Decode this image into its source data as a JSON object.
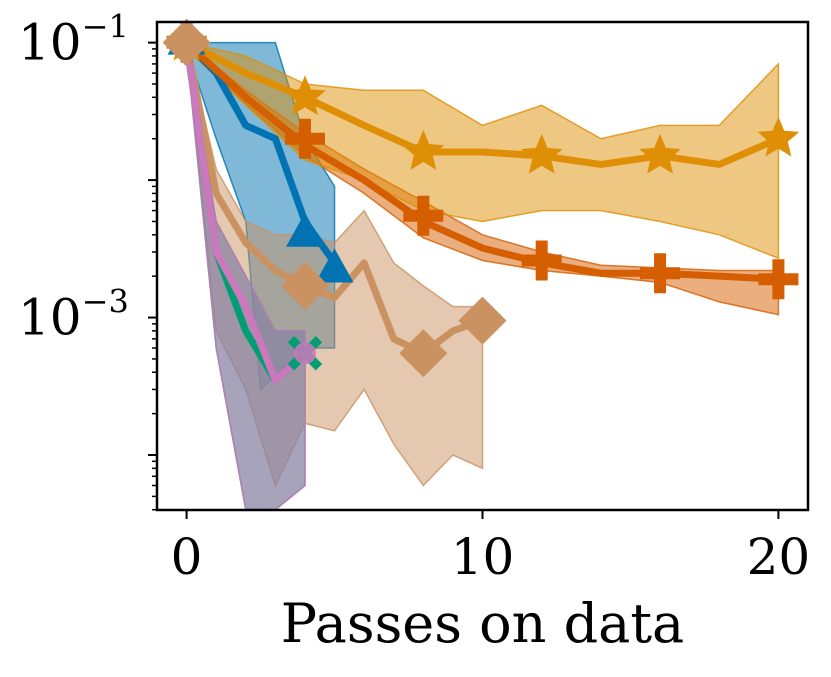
{
  "chart_data": {
    "type": "line",
    "title": "",
    "xlabel": "Passes on data",
    "ylabel": "",
    "xlim": [
      -1,
      21
    ],
    "ylim_log10": [
      -4.4,
      -0.85
    ],
    "y_scale": "log",
    "grid": false,
    "legend": "none",
    "x_ticks": [
      0,
      10,
      20
    ],
    "x_tick_labels": [
      "0",
      "10",
      "20"
    ],
    "y_ticks": [
      {
        "value": 0.1,
        "base": "10",
        "exponent": "−1"
      },
      {
        "value": 0.001,
        "base": "10",
        "exponent": "−3"
      }
    ],
    "series": [
      {
        "name": "blue-triangle",
        "color": "#0173b2",
        "marker": "triangle",
        "x": [
          0,
          1,
          2,
          3,
          4,
          5
        ],
        "y": [
          0.1,
          0.06,
          0.025,
          0.02,
          0.005,
          0.0025
        ],
        "marker_x": [
          0,
          4,
          5
        ],
        "marker_y": [
          0.1,
          0.004,
          0.0022
        ],
        "band_upper": [
          0.1,
          0.1,
          0.1,
          0.1,
          0.02,
          0.009,
          0.004
        ],
        "band_lower": [
          0.09,
          0.02,
          0.005,
          0.0003,
          0.0006,
          0.0006
        ],
        "band_x_upper": [
          0,
          1,
          2,
          3,
          4,
          5,
          5
        ],
        "band_x_lower": [
          0,
          1,
          2,
          2.5,
          4,
          5
        ]
      },
      {
        "name": "orange-plus",
        "color": "#d55e00",
        "marker": "plus",
        "x": [
          0,
          2,
          4,
          6,
          8,
          10,
          12,
          14,
          16,
          18,
          20
        ],
        "y": [
          0.1,
          0.04,
          0.018,
          0.01,
          0.005,
          0.0032,
          0.0025,
          0.0021,
          0.0021,
          0.002,
          0.0019
        ],
        "marker_x": [
          0,
          4,
          8,
          12,
          16,
          20
        ],
        "marker_y": [
          0.1,
          0.02,
          0.0055,
          0.0026,
          0.0021,
          0.0019
        ],
        "band_upper": [
          0.1,
          0.045,
          0.022,
          0.012,
          0.007,
          0.004,
          0.003,
          0.0024,
          0.0023,
          0.0022,
          0.0022
        ],
        "band_lower": [
          0.09,
          0.036,
          0.015,
          0.008,
          0.0038,
          0.0026,
          0.0022,
          0.002,
          0.0018,
          0.0013,
          0.00105
        ]
      },
      {
        "name": "gold-star",
        "color": "#de8f05",
        "marker": "star",
        "x": [
          0,
          2,
          4,
          6,
          8,
          10,
          12,
          14,
          16,
          18,
          20
        ],
        "y": [
          0.1,
          0.06,
          0.04,
          0.025,
          0.016,
          0.016,
          0.015,
          0.013,
          0.015,
          0.013,
          0.02
        ],
        "marker_x": [
          0,
          4,
          8,
          12,
          16,
          20
        ],
        "marker_y": [
          0.1,
          0.04,
          0.016,
          0.015,
          0.015,
          0.02
        ],
        "band_upper": [
          0.1,
          0.08,
          0.05,
          0.045,
          0.045,
          0.025,
          0.035,
          0.02,
          0.025,
          0.025,
          0.07
        ],
        "band_lower": [
          0.09,
          0.035,
          0.014,
          0.01,
          0.006,
          0.005,
          0.006,
          0.006,
          0.005,
          0.004,
          0.0027
        ]
      },
      {
        "name": "tan-diamond",
        "color": "#ca9161",
        "marker": "diamond",
        "x": [
          0,
          1,
          2,
          3,
          4,
          5,
          6,
          7,
          8,
          9,
          10
        ],
        "y": [
          0.1,
          0.008,
          0.0035,
          0.0022,
          0.0017,
          0.0014,
          0.0025,
          0.0007,
          0.00055,
          0.0008,
          0.00095
        ],
        "marker_x": [
          0,
          4,
          8,
          10
        ],
        "marker_y": [
          0.1,
          0.0017,
          0.00055,
          0.00095
        ],
        "band_upper": [
          0.1,
          0.012,
          0.005,
          0.004,
          0.004,
          0.0035,
          0.006,
          0.0025,
          0.0017,
          0.0012,
          0.0012
        ],
        "band_lower": [
          0.09,
          0.0008,
          0.0003,
          6e-05,
          0.00017,
          0.00015,
          0.0003,
          0.00012,
          6e-05,
          0.0001,
          8e-05
        ]
      },
      {
        "name": "green-cross",
        "color": "#029e73",
        "marker": "x",
        "x": [
          0,
          1,
          2,
          3,
          4
        ],
        "y": [
          0.1,
          0.003,
          0.0008,
          0.00035,
          0.00055
        ],
        "marker_x": [
          4
        ],
        "marker_y": [
          0.00055
        ],
        "band_upper": [
          0.1,
          0.005,
          0.002,
          0.0008,
          0.0008
        ],
        "band_lower": [
          0.09,
          0.0006,
          4e-05,
          4e-05,
          6e-05
        ]
      },
      {
        "name": "pink-circle",
        "color": "#cc78bc",
        "marker": "circle",
        "x": [
          0,
          1,
          2,
          3,
          4
        ],
        "y": [
          0.1,
          0.003,
          0.0012,
          0.00035,
          0.00055
        ],
        "marker_x": [
          4
        ],
        "marker_y": [
          0.00055
        ],
        "band_upper": [
          0.1,
          0.005,
          0.002,
          0.0008,
          0.0008
        ],
        "band_lower": [
          0.09,
          0.0006,
          4e-05,
          4e-05,
          6e-05
        ]
      }
    ]
  }
}
